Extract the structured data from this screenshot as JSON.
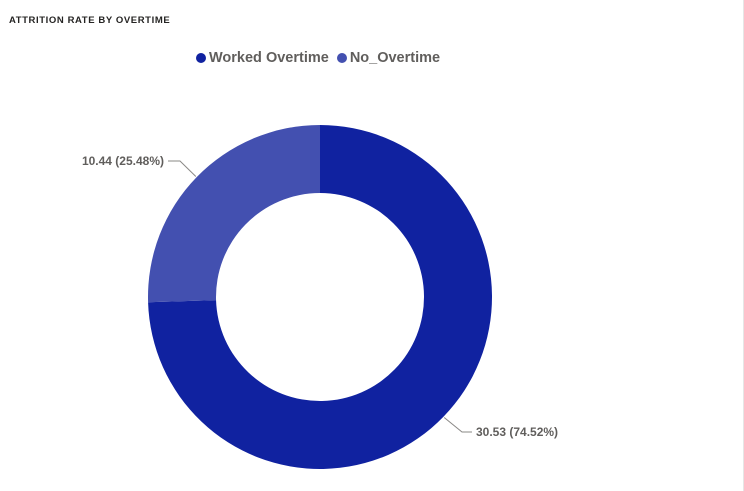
{
  "title": "ATTRITION RATE BY OVERTIME",
  "colors": {
    "worked_overtime": "#1022a0",
    "no_overtime": "#4350b0"
  },
  "legend": [
    {
      "label": "Worked Overtime",
      "color": "#1022a0"
    },
    {
      "label": "No_Overtime",
      "color": "#4350b0"
    }
  ],
  "chart_data": {
    "type": "pie",
    "subtype": "donut",
    "title": "ATTRITION RATE BY OVERTIME",
    "categories": [
      "Worked Overtime",
      "No_Overtime"
    ],
    "values": [
      30.53,
      10.44
    ],
    "percentages": [
      74.52,
      25.48
    ],
    "data_labels": [
      "30.53 (74.52%)",
      "10.44 (25.48%)"
    ],
    "legend_position": "top-center"
  }
}
